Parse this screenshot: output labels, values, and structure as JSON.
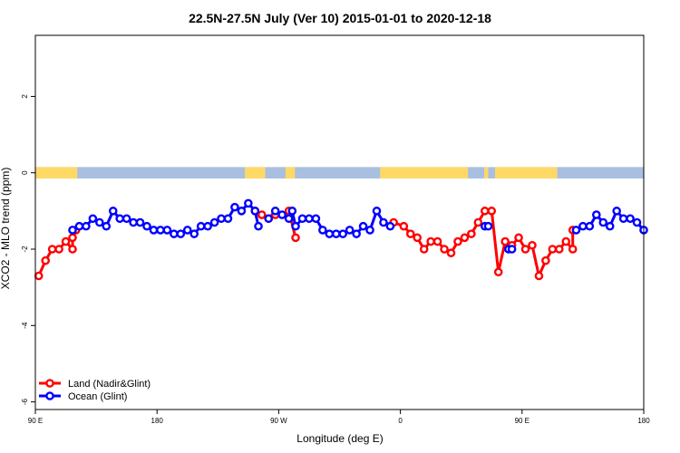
{
  "colors": {
    "land": "#ff0000",
    "ocean": "#0000ff",
    "band_ocean": "#a8bfe0",
    "band_land": "#ffd966"
  },
  "chart_data": {
    "type": "line",
    "title": "22.5N-27.5N July (Ver 10)   2015-01-01 to 2020-12-18",
    "xlabel": "Longitude (deg E)",
    "ylabel": "XCO2 - MLO trend (ppm)",
    "xlim": [
      90,
      540
    ],
    "ylim": [
      -6.2,
      3.6
    ],
    "x_ticks": [
      {
        "value": 90,
        "label": "90 E"
      },
      {
        "value": 180,
        "label": "180"
      },
      {
        "value": 270,
        "label": "90 W"
      },
      {
        "value": 360,
        "label": "0"
      },
      {
        "value": 450,
        "label": "90 E"
      },
      {
        "value": 540,
        "label": "180"
      }
    ],
    "y_ticks": [
      {
        "value": 2,
        "label": "2"
      },
      {
        "value": 0,
        "label": "0"
      },
      {
        "value": -2,
        "label": "-2"
      },
      {
        "value": -4,
        "label": "-4"
      },
      {
        "value": -6,
        "label": "-6"
      }
    ],
    "grid": false,
    "legend_position": "bottom-left",
    "land_band_ranges": [
      [
        90,
        121
      ],
      [
        245,
        260
      ],
      [
        275,
        282
      ],
      [
        345,
        410
      ],
      [
        422,
        425
      ],
      [
        430,
        476
      ]
    ],
    "series": [
      {
        "name": "Land (Nadir&Glint)",
        "color_key": "land",
        "segments": [
          [
            [
              92.5,
              -2.7
            ],
            [
              97.5,
              -2.3
            ],
            [
              102.5,
              -2.0
            ],
            [
              107.5,
              -2.0
            ],
            [
              112.5,
              -1.8
            ],
            [
              117.5,
              -2.0
            ],
            [
              117.5,
              -1.7
            ],
            [
              120,
              -1.5
            ]
          ],
          [
            [
              252.5,
              -1.0
            ],
            [
              257.5,
              -1.1
            ],
            [
              262.5,
              -1.2
            ],
            [
              267.5,
              -1.1
            ]
          ],
          [
            [
              277.5,
              -1.0
            ],
            [
              282.5,
              -1.7
            ]
          ],
          [
            [
              355,
              -1.3
            ],
            [
              362.5,
              -1.4
            ],
            [
              367.5,
              -1.6
            ],
            [
              372.5,
              -1.7
            ],
            [
              377.5,
              -2.0
            ],
            [
              382.5,
              -1.8
            ],
            [
              387.5,
              -1.8
            ],
            [
              392.5,
              -2.0
            ],
            [
              397.5,
              -2.1
            ],
            [
              402.5,
              -1.8
            ],
            [
              407.5,
              -1.7
            ],
            [
              412.5,
              -1.6
            ],
            [
              417.5,
              -1.3
            ],
            [
              422.5,
              -1.0
            ],
            [
              427.5,
              -1.0
            ],
            [
              432.5,
              -2.6
            ],
            [
              437.5,
              -1.8
            ]
          ],
          [
            [
              442.5,
              -1.9
            ],
            [
              447.5,
              -1.7
            ],
            [
              452.5,
              -2.0
            ],
            [
              457.5,
              -1.9
            ],
            [
              462.5,
              -2.7
            ],
            [
              467.5,
              -2.3
            ],
            [
              472.5,
              -2.0
            ],
            [
              477.5,
              -2.0
            ],
            [
              482.5,
              -1.8
            ],
            [
              487.5,
              -2.0
            ],
            [
              487.5,
              -1.5
            ]
          ]
        ]
      },
      {
        "name": "Ocean (Glint)",
        "color_key": "ocean",
        "segments": [
          [
            [
              117.5,
              -1.5
            ],
            [
              122.5,
              -1.4
            ],
            [
              127.5,
              -1.4
            ],
            [
              132.5,
              -1.2
            ],
            [
              137.5,
              -1.3
            ],
            [
              142.5,
              -1.4
            ],
            [
              147.5,
              -1.0
            ],
            [
              152.5,
              -1.2
            ],
            [
              157.5,
              -1.2
            ],
            [
              162.5,
              -1.3
            ],
            [
              167.5,
              -1.3
            ],
            [
              172.5,
              -1.4
            ],
            [
              177.5,
              -1.5
            ],
            [
              182.5,
              -1.5
            ],
            [
              187.5,
              -1.5
            ],
            [
              192.5,
              -1.6
            ],
            [
              197.5,
              -1.6
            ],
            [
              202.5,
              -1.5
            ],
            [
              207.5,
              -1.6
            ],
            [
              212.5,
              -1.4
            ],
            [
              217.5,
              -1.4
            ],
            [
              222.5,
              -1.3
            ],
            [
              227.5,
              -1.2
            ],
            [
              232.5,
              -1.2
            ],
            [
              237.5,
              -0.9
            ],
            [
              242.5,
              -1.0
            ],
            [
              247.5,
              -0.8
            ],
            [
              252.5,
              -1.0
            ],
            [
              255,
              -1.4
            ]
          ],
          [
            [
              262.5,
              -1.2
            ],
            [
              267.5,
              -1.0
            ],
            [
              272.5,
              -1.1
            ],
            [
              277.5,
              -1.2
            ],
            [
              280,
              -1.0
            ],
            [
              282.5,
              -1.4
            ],
            [
              287.5,
              -1.2
            ],
            [
              292.5,
              -1.2
            ],
            [
              297.5,
              -1.2
            ],
            [
              302.5,
              -1.5
            ],
            [
              307.5,
              -1.6
            ],
            [
              312.5,
              -1.6
            ],
            [
              317.5,
              -1.6
            ],
            [
              322.5,
              -1.5
            ],
            [
              327.5,
              -1.6
            ],
            [
              332.5,
              -1.4
            ],
            [
              337.5,
              -1.5
            ],
            [
              342.5,
              -1.0
            ],
            [
              347.5,
              -1.3
            ],
            [
              352.5,
              -1.4
            ]
          ],
          [
            [
              422.5,
              -1.4
            ],
            [
              425,
              -1.4
            ]
          ],
          [
            [
              440,
              -2.0
            ],
            [
              442.5,
              -2.0
            ]
          ],
          [
            [
              490,
              -1.5
            ],
            [
              495,
              -1.4
            ],
            [
              500,
              -1.4
            ],
            [
              505,
              -1.1
            ],
            [
              510,
              -1.3
            ],
            [
              515,
              -1.4
            ],
            [
              520,
              -1.0
            ],
            [
              525,
              -1.2
            ],
            [
              530,
              -1.2
            ],
            [
              535,
              -1.3
            ],
            [
              540,
              -1.5
            ]
          ]
        ]
      }
    ]
  }
}
